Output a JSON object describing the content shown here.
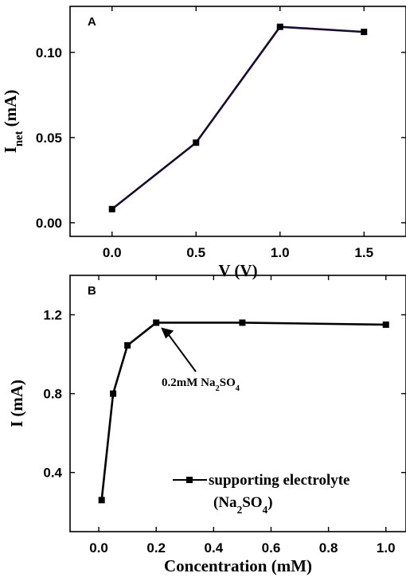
{
  "chart_data": [
    {
      "type": "line",
      "panel_label": "A",
      "xlabel": "V (V)",
      "ylabel": "I",
      "ylabel_sub": "net",
      "ylabel_unit": " (mA)",
      "xlim": [
        -0.25,
        1.75
      ],
      "ylim": [
        -0.008,
        0.127
      ],
      "xticks": [
        0.0,
        0.5,
        1.0,
        1.5
      ],
      "xtick_labels": [
        "0.0",
        "0.5",
        "1.0",
        "1.5"
      ],
      "yticks": [
        0.0,
        0.05,
        0.1
      ],
      "ytick_labels": [
        "0.00",
        "0.05",
        "0.10"
      ],
      "grid": false,
      "colors": {
        "line": "#1a0a33",
        "marker": "#000000",
        "axis": "#000000"
      },
      "series": [
        {
          "x": [
            0.0,
            0.5,
            1.0,
            1.5
          ],
          "y": [
            0.008,
            0.047,
            0.115,
            0.112
          ]
        }
      ]
    },
    {
      "type": "line",
      "panel_label": "B",
      "xlabel": "Concentration (mM)",
      "ylabel": "I (mA)",
      "xlim": [
        -0.1,
        1.07
      ],
      "ylim": [
        0.1,
        1.4
      ],
      "xticks": [
        0.0,
        0.2,
        0.4,
        0.6,
        0.8,
        1.0
      ],
      "xtick_labels": [
        "0.0",
        "0.2",
        "0.4",
        "0.6",
        "0.8",
        "1.0"
      ],
      "yticks": [
        0.4,
        0.8,
        1.2
      ],
      "ytick_labels": [
        "0.4",
        "0.8",
        "1.2"
      ],
      "grid": false,
      "legend_position": "bottom-right",
      "colors": {
        "line": "#000000",
        "marker": "#000000",
        "axis": "#000000"
      },
      "series": [
        {
          "name": "supporting electrolyte",
          "name_line2": "(Na2SO4)",
          "x": [
            0.01,
            0.05,
            0.1,
            0.2,
            0.5,
            1.0
          ],
          "y": [
            0.26,
            0.8,
            1.045,
            1.16,
            1.16,
            1.15
          ]
        }
      ],
      "annotations": [
        {
          "text": "0.2mM Na2SO4",
          "points_to": {
            "x": 0.2,
            "y": 1.16
          }
        }
      ]
    }
  ]
}
